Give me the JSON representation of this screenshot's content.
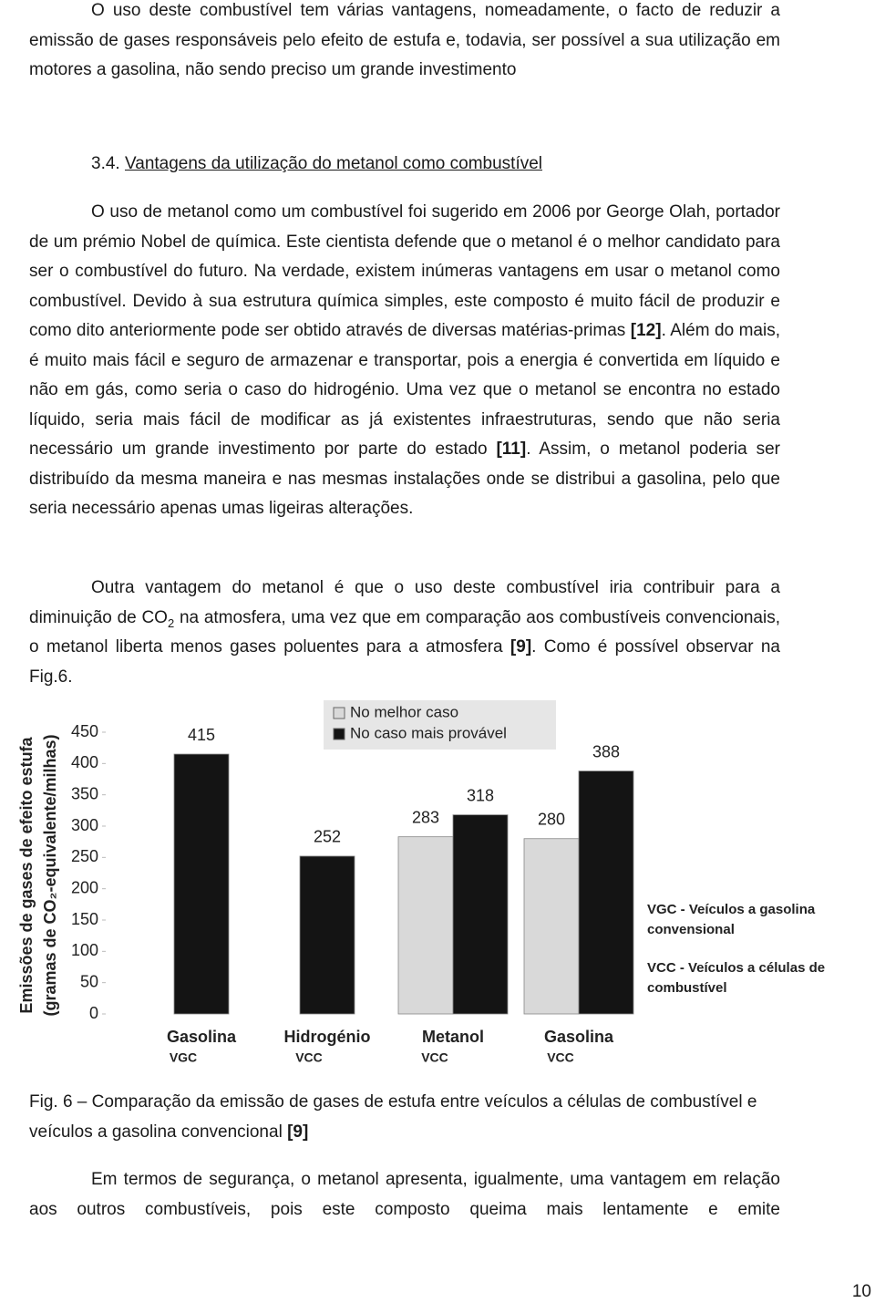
{
  "paragraphs": [
    [
      "O uso deste combustível tem várias vantagens, nomeadamente, o facto de reduzir a emissão de gases responsáveis pelo efeito de estufa e, todavia, ser possível a sua utilização em motores a gasolina, não sendo preciso um grande investimento"
    ],
    [
      "O uso de metanol como um combustível foi sugerido em 2006 por George Olah, portador de um prémio Nobel de química. Este cientista defende que o metanol é o melhor candidato para ser o combustível do futuro. Na verdade, existem inúmeras vantagens em usar o metanol como combustível. Devido à sua estrutura química simples, este composto é muito fácil de produzir e como dito anteriormente pode ser obtido através de diversas matérias-primas ",
      "[12]",
      ". Além do mais, é muito mais fácil e seguro de armazenar e transportar, pois a energia é convertida em líquido e não em gás, como seria o caso do hidrogénio. Uma vez que o metanol se encontra no estado líquido, seria mais fácil de modificar as já existentes infraestruturas, sendo que não seria necessário um grande investimento por parte do estado ",
      "[11]",
      ". Assim, o metanol poderia ser distribuído da mesma maneira e nas mesmas instalações onde se distribui a gasolina, pelo que seria necessário apenas umas ligeiras alterações."
    ],
    [
      "Outra vantagem do metanol é que o uso deste combustível iria contribuir para a diminuição de CO",
      "2",
      " na atmosfera, uma vez que em comparação aos combustíveis convencionais, o metanol liberta menos gases poluentes para a atmosfera ",
      "[9]",
      ". Como é possível observar na Fig.6."
    ],
    [
      "Em termos de segurança, o metanol apresenta, igualmente, uma vantagem em relação aos outros combustíveis, pois este composto queima mais lentamente e emite"
    ]
  ],
  "section": {
    "number": "3.4.",
    "title": "Vantagens da utilização do metanol como combustível"
  },
  "chart_data": {
    "type": "bar",
    "ylabel": [
      "Emissões de gases de efeito estufa",
      "(gramas de CO₂-equivalente/milhas)"
    ],
    "categories": [
      "Gasolina",
      "Hidrogénio",
      "Metanol",
      "Gasolina"
    ],
    "category_sublabels": [
      "VGC",
      "VCC",
      "VCC",
      "VCC"
    ],
    "series": [
      {
        "name": "No melhor caso",
        "color": "#d9d9d9",
        "values": [
          null,
          null,
          283,
          280
        ]
      },
      {
        "name": "No caso mais provável",
        "color": "#141414",
        "values": [
          415,
          252,
          318,
          388
        ]
      }
    ],
    "ylim": [
      0,
      450
    ],
    "yticks": [
      0,
      50,
      100,
      150,
      200,
      250,
      300,
      350,
      400,
      450
    ],
    "annotations": [
      [
        "VGC - Veículos a gasolina",
        "convensional"
      ],
      [
        "VCC - Veículos a células de",
        "combustível"
      ]
    ]
  },
  "caption": [
    "Fig. 6 – Comparação da emissão de gases de estufa entre veículos a células de combustível e veículos a gasolina convencional ",
    "[9]"
  ],
  "page_number": "10"
}
